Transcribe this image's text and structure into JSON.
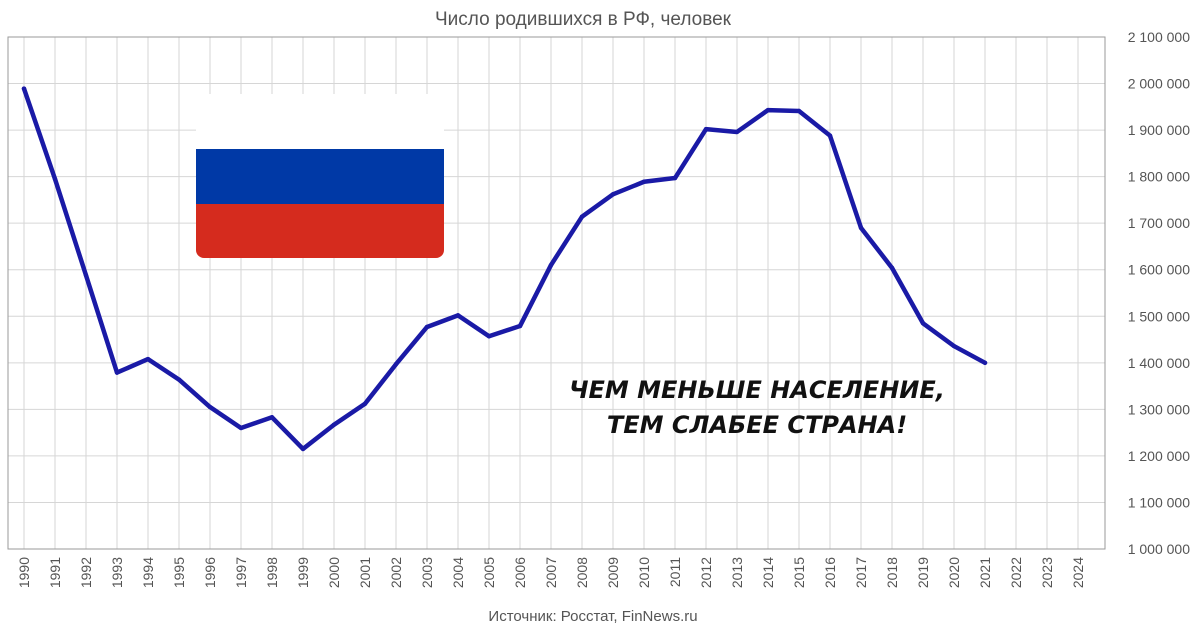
{
  "chart_data": {
    "type": "line",
    "title": "Число родившихся в РФ, человек",
    "source": "Источник: Росстат, FinNews.ru",
    "annotation": [
      "ЧЕМ МЕНЬШЕ НАСЕЛЕНИЕ,",
      "ТЕМ СЛАБЕЕ СТРАНА!"
    ],
    "x": [
      "1990",
      "1991",
      "1992",
      "1993",
      "1994",
      "1995",
      "1996",
      "1997",
      "1998",
      "1999",
      "2000",
      "2001",
      "2002",
      "2003",
      "2004",
      "2005",
      "2006",
      "2007",
      "2008",
      "2009",
      "2010",
      "2011",
      "2012",
      "2013",
      "2014",
      "2015",
      "2016",
      "2017",
      "2018",
      "2019",
      "2020",
      "2021",
      "2022",
      "2023",
      "2024"
    ],
    "series": [
      {
        "values": [
          1989000,
          1795000,
          1588000,
          1379000,
          1408000,
          1364000,
          1305000,
          1260000,
          1283000,
          1215000,
          1267000,
          1312000,
          1397000,
          1477000,
          1502000,
          1457000,
          1479000,
          1610000,
          1714000,
          1762000,
          1789000,
          1797000,
          1902000,
          1896000,
          1943000,
          1941000,
          1888000,
          1690000,
          1604000,
          1485000,
          1436000,
          1400000,
          null,
          null,
          null
        ],
        "color": "#1a1aa6"
      }
    ],
    "ylim": [
      1000000,
      2100000
    ],
    "yticks": [
      "1 000 000",
      "1 100 000",
      "1 200 000",
      "1 300 000",
      "1 400 000",
      "1 500 000",
      "1 600 000",
      "1 700 000",
      "1 800 000",
      "1 900 000",
      "2 000 000",
      "2 100 000"
    ],
    "y_axis_position": "right",
    "grid": true,
    "flag_colors": [
      "#ffffff",
      "#0039a6",
      "#d52b1e"
    ]
  }
}
